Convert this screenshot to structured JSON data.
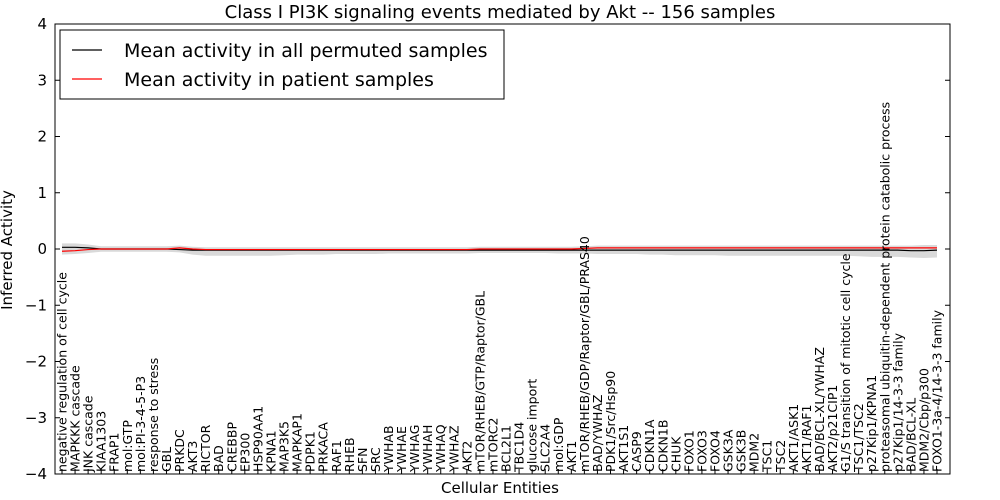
{
  "chart_data": {
    "type": "line",
    "title": "Class I PI3K signaling events mediated by Akt -- 156 samples",
    "xlabel": "Cellular Entities",
    "ylabel": "Inferred Activity",
    "ylim": [
      -4,
      4
    ],
    "yticks": [
      "4",
      "3",
      "2",
      "1",
      "0",
      "−1",
      "−2",
      "−3",
      "−4"
    ],
    "ytick_values": [
      4,
      3,
      2,
      1,
      0,
      -1,
      -2,
      -3,
      -4
    ],
    "legend": {
      "placement": "top-left",
      "entries": [
        {
          "label": "Mean activity in all permuted samples",
          "color": "#000000"
        },
        {
          "label": "Mean activity in patient samples",
          "color": "#ff0000"
        }
      ]
    },
    "band_color": "#d9d9d9",
    "categories": [
      "negative regulation of cell cycle",
      "MAPKKK cascade",
      "JNK cascade",
      "KIAA1303",
      "FRAP1",
      "mol:GTP",
      "mol:PI-3-4-5-P3",
      "response to stress",
      "GBL",
      "PRKDC",
      "AKT3",
      "RICTOR",
      "BAD",
      "CREBBP",
      "EP300",
      "HSP90AA1",
      "KPNA1",
      "MAP3K5",
      "MAPKAP1",
      "PDPK1",
      "PRKACA",
      "RAF1",
      "RHEB",
      "SFN",
      "SRC",
      "YWHAB",
      "YWHAE",
      "YWHAG",
      "YWHAH",
      "YWHAQ",
      "YWHAZ",
      "AKT2",
      "mTOR/RHEB/GTP/Raptor/GBL",
      "mTORC2",
      "BCL2L1",
      "TBC1D4",
      "glucose import",
      "SLC2A4",
      "mol:GDP",
      "AKT1",
      "mTOR/RHEB/GDP/Raptor/GBL/PRAS40",
      "BAD/YWHAZ",
      "PDK1/Src/Hsp90",
      "AKT1S1",
      "CASP9",
      "CDKN1A",
      "CDKN1B",
      "CHUK",
      "FOXO1",
      "FOXO3",
      "FOXO4",
      "GSK3A",
      "GSK3B",
      "MDM2",
      "TSC1",
      "TSC2",
      "AKT1/ASK1",
      "AKT1/RAF1",
      "BAD/BCL-XL/YWHAZ",
      "AKT2/p21CIP1",
      "G1/S transition of mitotic cell cycle",
      "TSC1/TSC2",
      "p27Kip1/KPNA1",
      "proteasomal ubiquitin-dependent protein catabolic process",
      "p27Kip1/14-3-3 family",
      "BAD/BCL-XL",
      "MDM2/Cbp/p300",
      "FOXO1-3a-4/14-3-3 family"
    ],
    "series": [
      {
        "name": "Mean activity in all permuted samples",
        "color": "#000000",
        "values": [
          0.03,
          0.03,
          0.02,
          0.0,
          0.0,
          0.0,
          0.0,
          0.0,
          0.0,
          -0.01,
          -0.02,
          -0.02,
          -0.02,
          -0.02,
          -0.02,
          -0.02,
          -0.02,
          -0.02,
          -0.02,
          -0.02,
          -0.02,
          -0.02,
          -0.02,
          -0.02,
          -0.02,
          -0.02,
          -0.02,
          -0.02,
          -0.02,
          -0.02,
          -0.02,
          -0.02,
          -0.02,
          -0.02,
          -0.02,
          -0.02,
          -0.02,
          -0.02,
          -0.02,
          -0.02,
          -0.02,
          -0.02,
          -0.02,
          -0.02,
          -0.02,
          -0.02,
          -0.02,
          -0.02,
          -0.02,
          -0.02,
          -0.02,
          -0.02,
          -0.02,
          -0.02,
          -0.02,
          -0.02,
          -0.02,
          -0.02,
          -0.02,
          -0.02,
          -0.02,
          -0.02,
          -0.02,
          -0.02,
          -0.02,
          -0.03,
          -0.03,
          -0.02
        ]
      },
      {
        "name": "Mean activity in patient samples",
        "color": "#ff0000",
        "values": [
          -0.04,
          -0.03,
          -0.01,
          0.0,
          0.0,
          0.0,
          0.0,
          0.0,
          0.0,
          0.02,
          0.0,
          -0.01,
          -0.01,
          -0.01,
          -0.01,
          -0.01,
          -0.01,
          -0.01,
          -0.01,
          -0.01,
          -0.01,
          -0.01,
          -0.01,
          -0.01,
          -0.01,
          -0.01,
          -0.01,
          -0.01,
          -0.01,
          -0.01,
          -0.01,
          -0.01,
          0.0,
          0.0,
          0.0,
          0.0,
          0.0,
          0.0,
          0.0,
          0.0,
          0.01,
          0.02,
          0.02,
          0.02,
          0.02,
          0.02,
          0.02,
          0.02,
          0.02,
          0.02,
          0.02,
          0.02,
          0.02,
          0.02,
          0.02,
          0.02,
          0.02,
          0.02,
          0.02,
          0.02,
          0.02,
          0.02,
          0.02,
          0.02,
          0.02,
          0.02,
          0.02,
          0.02
        ]
      }
    ],
    "band": {
      "upper": [
        0.1,
        0.1,
        0.08,
        0.05,
        0.05,
        0.05,
        0.05,
        0.05,
        0.05,
        0.06,
        0.04,
        0.03,
        0.03,
        0.03,
        0.03,
        0.03,
        0.03,
        0.03,
        0.03,
        0.03,
        0.03,
        0.03,
        0.03,
        0.03,
        0.03,
        0.03,
        0.03,
        0.03,
        0.03,
        0.03,
        0.03,
        0.03,
        0.04,
        0.04,
        0.04,
        0.04,
        0.04,
        0.04,
        0.04,
        0.04,
        0.05,
        0.06,
        0.06,
        0.06,
        0.06,
        0.06,
        0.06,
        0.06,
        0.06,
        0.06,
        0.06,
        0.06,
        0.06,
        0.06,
        0.06,
        0.06,
        0.06,
        0.06,
        0.06,
        0.06,
        0.06,
        0.06,
        0.06,
        0.06,
        0.06,
        0.06,
        0.07,
        0.07
      ],
      "lower": [
        -0.1,
        -0.09,
        -0.07,
        -0.05,
        -0.05,
        -0.05,
        -0.05,
        -0.05,
        -0.05,
        -0.06,
        -0.1,
        -0.12,
        -0.12,
        -0.12,
        -0.12,
        -0.12,
        -0.12,
        -0.11,
        -0.1,
        -0.1,
        -0.1,
        -0.09,
        -0.09,
        -0.09,
        -0.09,
        -0.08,
        -0.08,
        -0.08,
        -0.08,
        -0.08,
        -0.08,
        -0.08,
        -0.07,
        -0.07,
        -0.07,
        -0.07,
        -0.07,
        -0.07,
        -0.08,
        -0.08,
        -0.08,
        -0.09,
        -0.09,
        -0.09,
        -0.09,
        -0.1,
        -0.1,
        -0.11,
        -0.11,
        -0.11,
        -0.11,
        -0.12,
        -0.12,
        -0.12,
        -0.12,
        -0.12,
        -0.12,
        -0.12,
        -0.12,
        -0.12,
        -0.12,
        -0.13,
        -0.14,
        -0.14,
        -0.14,
        -0.15,
        -0.16,
        -0.15
      ]
    }
  }
}
